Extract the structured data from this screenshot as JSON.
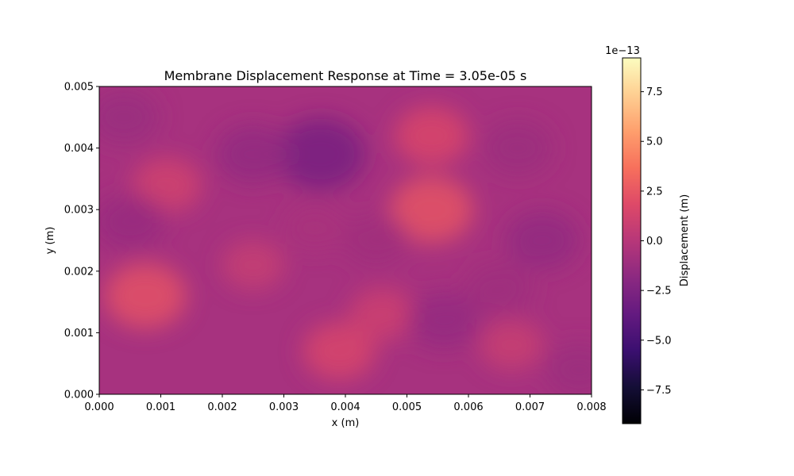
{
  "chart_data": {
    "type": "heatmap",
    "title": "Membrane Displacement Response at Time = 3.05e-05 s",
    "xlabel": "x (m)",
    "ylabel": "y (m)",
    "xlim": [
      0.0,
      0.008
    ],
    "ylim": [
      0.0,
      0.005
    ],
    "x_ticks": [
      "0.000",
      "0.001",
      "0.002",
      "0.003",
      "0.004",
      "0.005",
      "0.006",
      "0.007",
      "0.008"
    ],
    "y_ticks": [
      "0.000",
      "0.001",
      "0.002",
      "0.003",
      "0.004",
      "0.005"
    ],
    "colormap": "magma",
    "colorbar": {
      "label": "Displacement (m)",
      "offset_text": "1e−13",
      "range": [
        -9.2,
        9.2
      ],
      "ticks": [
        "−7.5",
        "−5.0",
        "−2.5",
        "0.0",
        "2.5",
        "5.0",
        "7.5"
      ]
    },
    "grid": false,
    "approx_features": [
      {
        "x": 0.00075,
        "y": 0.0016,
        "value": 2.2
      },
      {
        "x": 0.0011,
        "y": 0.0034,
        "value": 1.2
      },
      {
        "x": 0.0039,
        "y": 0.0007,
        "value": 1.5
      },
      {
        "x": 0.0054,
        "y": 0.003,
        "value": 2.3
      },
      {
        "x": 0.0054,
        "y": 0.0042,
        "value": 1.6
      },
      {
        "x": 0.0046,
        "y": 0.0013,
        "value": 1.0
      },
      {
        "x": 0.0025,
        "y": 0.0021,
        "value": 0.7
      },
      {
        "x": 0.0067,
        "y": 0.0008,
        "value": 0.8
      },
      {
        "x": 0.0036,
        "y": 0.0039,
        "value": -2.8
      },
      {
        "x": 0.0025,
        "y": 0.0039,
        "value": -1.6
      },
      {
        "x": 0.0004,
        "y": 0.0045,
        "value": -1.3
      },
      {
        "x": 0.0005,
        "y": 0.0028,
        "value": -1.4
      },
      {
        "x": 0.0056,
        "y": 0.0012,
        "value": -1.5
      },
      {
        "x": 0.0072,
        "y": 0.0025,
        "value": -1.6
      },
      {
        "x": 0.0068,
        "y": 0.004,
        "value": -1.2
      },
      {
        "x": 0.0065,
        "y": 0.0017,
        "value": -1.1
      },
      {
        "x": 0.0045,
        "y": 0.0025,
        "value": -1.0
      },
      {
        "x": 0.0078,
        "y": 0.0004,
        "value": -1.2
      },
      {
        "x": 0.0035,
        "y": 0.0027,
        "value": -0.6
      }
    ]
  }
}
